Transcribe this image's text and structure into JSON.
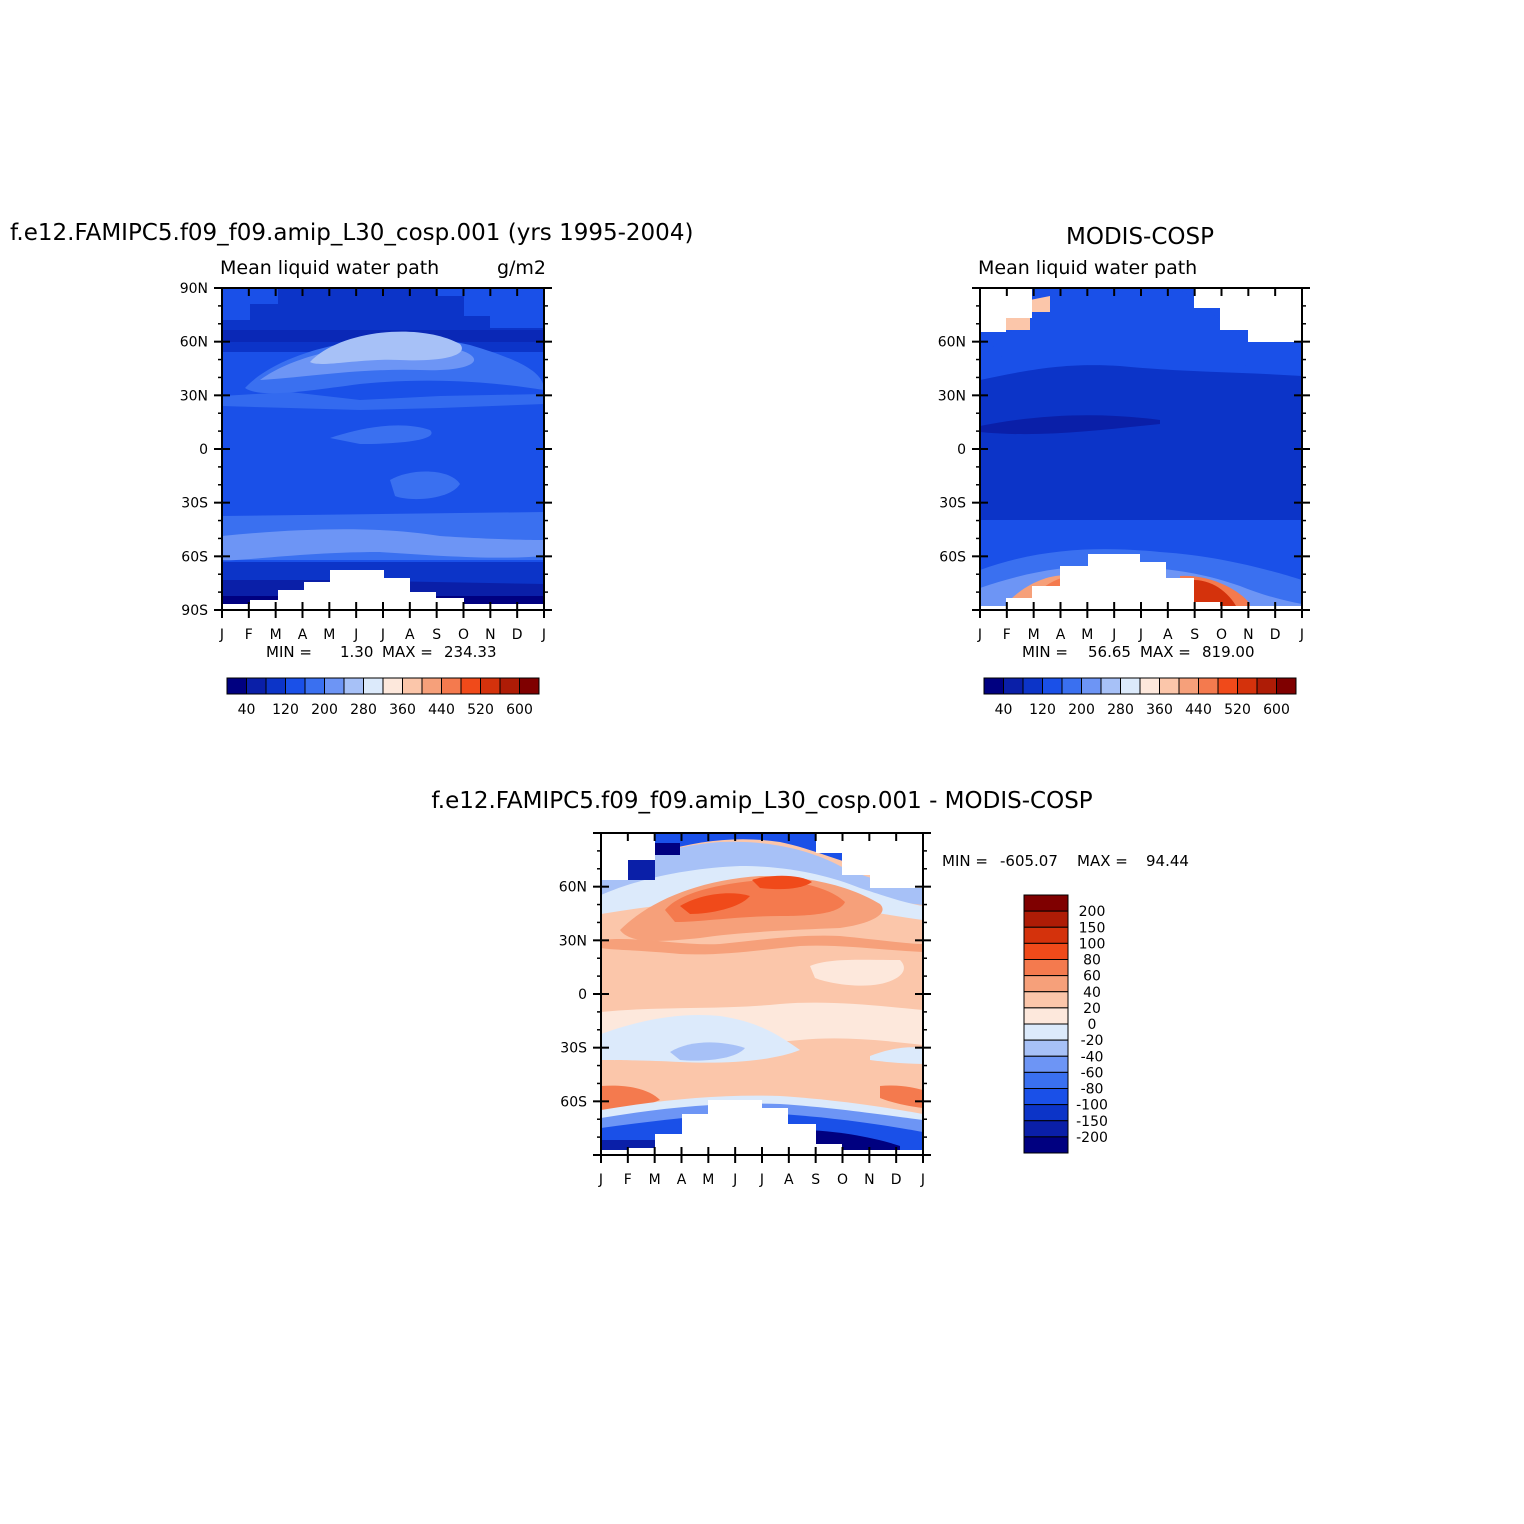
{
  "chart_data": [
    {
      "type": "heatmap",
      "title": "f.e12.FAMIPC5.f09_f09.amip_L30_cosp.001 (yrs 1995-2004)",
      "subtitle_left": "Mean liquid water path",
      "subtitle_right": "g/m2",
      "x_ticks": [
        "J",
        "F",
        "M",
        "A",
        "M",
        "J",
        "J",
        "A",
        "S",
        "O",
        "N",
        "D",
        "J"
      ],
      "y_ticks": [
        "90N",
        "60N",
        "30N",
        "0",
        "30S",
        "60S",
        "90S"
      ],
      "ylim": [
        -90,
        90
      ],
      "min_label": "MIN =",
      "min_value": "1.30",
      "max_label": "MAX =",
      "max_value": "234.33",
      "colorbar_labels": [
        "40",
        "120",
        "200",
        "280",
        "360",
        "440",
        "520",
        "600"
      ],
      "colorbar_range": [
        0,
        640
      ],
      "data_range": [
        1.3,
        234.33
      ]
    },
    {
      "type": "heatmap",
      "title": "MODIS-COSP",
      "subtitle_left": "Mean liquid water path",
      "subtitle_right": "",
      "x_ticks": [
        "J",
        "F",
        "M",
        "A",
        "M",
        "J",
        "J",
        "A",
        "S",
        "O",
        "N",
        "D",
        "J"
      ],
      "y_ticks": [
        "60N",
        "30N",
        "0",
        "30S",
        "60S"
      ],
      "min_label": "MIN =",
      "min_value": "56.65",
      "max_label": "MAX =",
      "max_value": "819.00",
      "colorbar_labels": [
        "40",
        "120",
        "200",
        "280",
        "360",
        "440",
        "520",
        "600"
      ],
      "colorbar_range": [
        0,
        640
      ],
      "data_range": [
        56.65,
        819.0
      ]
    },
    {
      "type": "heatmap",
      "title": "f.e12.FAMIPC5.f09_f09.amip_L30_cosp.001 - MODIS-COSP",
      "x_ticks": [
        "J",
        "F",
        "M",
        "A",
        "M",
        "J",
        "J",
        "A",
        "S",
        "O",
        "N",
        "D",
        "J"
      ],
      "y_ticks": [
        "60N",
        "30N",
        "0",
        "30S",
        "60S"
      ],
      "min_label": "MIN =",
      "min_value": "-605.07",
      "max_label": "MAX =",
      "max_value": "94.44",
      "colorbar_labels": [
        "200",
        "150",
        "100",
        "80",
        "60",
        "40",
        "20",
        "0",
        "-20",
        "-40",
        "-60",
        "-80",
        "-100",
        "-150",
        "-200"
      ],
      "data_range": [
        -605.07,
        94.44
      ]
    }
  ],
  "colors": {
    "colormap": [
      "#000080",
      "#0a1fa8",
      "#0c34c8",
      "#1a50e8",
      "#3a70f0",
      "#6d95f5",
      "#a7c1f7",
      "#dceafb",
      "#fde8dc",
      "#fbc6aa",
      "#f6a07a",
      "#f47a4e",
      "#f04a1a",
      "#d4320c",
      "#ae1c06",
      "#7f0000"
    ]
  }
}
